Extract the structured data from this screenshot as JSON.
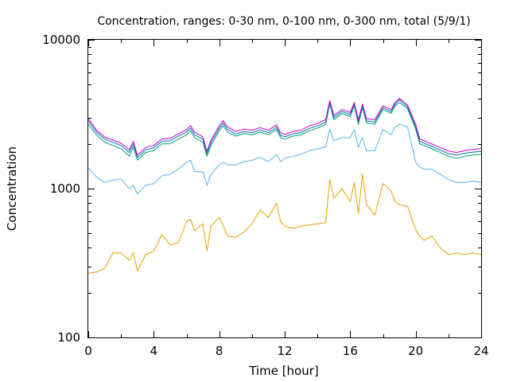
{
  "chart_data": {
    "type": "line",
    "title": "Concentration, ranges: 0-30 nm, 0-100 nm, 0-300 nm, total (5/9/1)",
    "xlabel": "Time [hour]",
    "ylabel": "Concentration",
    "xlim": [
      0,
      24
    ],
    "ylim": [
      100,
      10000
    ],
    "yscale": "log",
    "grid": false,
    "legend": "none",
    "x_ticks": [
      {
        "value": 0,
        "label": "0"
      },
      {
        "value": 4,
        "label": "4"
      },
      {
        "value": 8,
        "label": "8"
      },
      {
        "value": 12,
        "label": "12"
      },
      {
        "value": 16,
        "label": "16"
      },
      {
        "value": 20,
        "label": "20"
      },
      {
        "value": 24,
        "label": "24"
      }
    ],
    "y_ticks": [
      {
        "value": 100,
        "label": "100"
      },
      {
        "value": 1000,
        "label": "1000"
      },
      {
        "value": 10000,
        "label": "10000"
      }
    ],
    "x": [
      0,
      0.5,
      1,
      1.5,
      2,
      2.5,
      2.75,
      3,
      3.5,
      4,
      4.5,
      5,
      5.5,
      6,
      6.25,
      6.5,
      7,
      7.25,
      7.5,
      8,
      8.25,
      8.5,
      9,
      9.5,
      10,
      10.5,
      11,
      11.5,
      11.75,
      12,
      12.5,
      13,
      13.5,
      14,
      14.5,
      14.75,
      15,
      15.5,
      16,
      16.25,
      16.5,
      16.75,
      17,
      17.5,
      18,
      18.5,
      18.75,
      19,
      19.5,
      20,
      20.25,
      20.5,
      21,
      21.5,
      22,
      22.5,
      23,
      23.5,
      24
    ],
    "series": [
      {
        "color": "#e69f00",
        "values": [
          270,
          275,
          290,
          370,
          370,
          330,
          370,
          280,
          360,
          380,
          490,
          420,
          430,
          600,
          620,
          520,
          580,
          380,
          560,
          640,
          560,
          480,
          470,
          510,
          580,
          720,
          640,
          800,
          600,
          560,
          540,
          560,
          570,
          580,
          590,
          1150,
          860,
          1000,
          820,
          1100,
          680,
          1250,
          780,
          660,
          1080,
          960,
          820,
          780,
          760,
          530,
          480,
          450,
          480,
          400,
          360,
          370,
          360,
          370,
          360
        ]
      },
      {
        "color": "#56b4e9",
        "values": [
          1380,
          1200,
          1100,
          1140,
          1160,
          1000,
          1050,
          920,
          1050,
          1080,
          1220,
          1250,
          1350,
          1500,
          1550,
          1300,
          1300,
          1050,
          1250,
          1450,
          1500,
          1450,
          1440,
          1520,
          1550,
          1620,
          1520,
          1700,
          1520,
          1600,
          1650,
          1700,
          1800,
          1850,
          1900,
          2500,
          2100,
          2200,
          2200,
          2500,
          1900,
          2200,
          1800,
          1800,
          2500,
          2300,
          2600,
          2700,
          2600,
          1500,
          1400,
          1350,
          1350,
          1250,
          1150,
          1100,
          1100,
          1120,
          1100
        ]
      },
      {
        "color": "#009e73",
        "values": [
          2700,
          2300,
          2050,
          1950,
          1850,
          1650,
          1900,
          1550,
          1750,
          1800,
          2000,
          2000,
          2150,
          2300,
          2450,
          2200,
          2050,
          1650,
          1950,
          2450,
          2650,
          2400,
          2250,
          2350,
          2300,
          2400,
          2300,
          2500,
          2200,
          2150,
          2250,
          2300,
          2450,
          2550,
          2700,
          3700,
          2900,
          3200,
          3050,
          3600,
          2700,
          3500,
          2750,
          2700,
          3400,
          3200,
          3600,
          3800,
          3450,
          2500,
          2000,
          1950,
          1850,
          1750,
          1650,
          1600,
          1650,
          1680,
          1700
        ]
      },
      {
        "color": "#0072b2",
        "values": [
          2850,
          2400,
          2150,
          2050,
          1950,
          1750,
          2000,
          1620,
          1820,
          1880,
          2080,
          2100,
          2250,
          2400,
          2550,
          2300,
          2150,
          1720,
          2050,
          2550,
          2750,
          2500,
          2330,
          2420,
          2380,
          2480,
          2380,
          2580,
          2280,
          2230,
          2330,
          2380,
          2540,
          2640,
          2800,
          3800,
          3000,
          3300,
          3150,
          3700,
          2800,
          3600,
          2850,
          2800,
          3500,
          3300,
          3700,
          3950,
          3550,
          2600,
          2080,
          2020,
          1920,
          1820,
          1720,
          1680,
          1730,
          1760,
          1780
        ]
      },
      {
        "color": "#cc00cc",
        "values": [
          2950,
          2480,
          2220,
          2120,
          2020,
          1820,
          2080,
          1680,
          1890,
          1950,
          2160,
          2180,
          2330,
          2490,
          2650,
          2390,
          2230,
          1780,
          2130,
          2650,
          2860,
          2600,
          2420,
          2510,
          2470,
          2570,
          2470,
          2680,
          2370,
          2310,
          2420,
          2470,
          2640,
          2740,
          2910,
          3900,
          3100,
          3400,
          3250,
          3800,
          2900,
          3700,
          2950,
          2900,
          3600,
          3400,
          3800,
          4050,
          3650,
          2700,
          2160,
          2100,
          1990,
          1890,
          1790,
          1750,
          1800,
          1830,
          1860
        ]
      }
    ]
  }
}
